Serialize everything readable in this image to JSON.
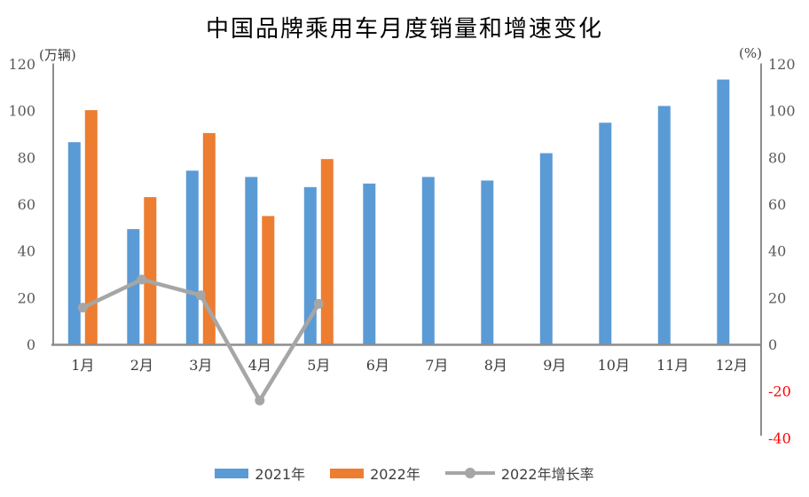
{
  "title": "中国品牌乘用车月度销量和增速变化",
  "chart_data": {
    "type": "bar+line",
    "title": "中国品牌乘用车月度销量和增速变化",
    "categories": [
      "1月",
      "2月",
      "3月",
      "4月",
      "5月",
      "6月",
      "7月",
      "8月",
      "9月",
      "10月",
      "11月",
      "12月"
    ],
    "series": [
      {
        "name": "2021年",
        "type": "bar",
        "axis": "left",
        "color": "#5B9BD5",
        "values": [
          86.7,
          49.5,
          74.5,
          71.8,
          67.5,
          69.0,
          71.8,
          70.3,
          82.0,
          95.0,
          102.2,
          113.5
        ]
      },
      {
        "name": "2022年",
        "type": "bar",
        "axis": "left",
        "color": "#ED7D31",
        "values": [
          100.4,
          63.2,
          90.6,
          55.1,
          79.5,
          null,
          null,
          null,
          null,
          null,
          null,
          null
        ]
      },
      {
        "name": "2022年增长率",
        "type": "line",
        "axis": "right",
        "color": "#A6A6A6",
        "values": [
          15.9,
          27.9,
          21.2,
          -23.8,
          17.5,
          null,
          null,
          null,
          null,
          null,
          null,
          null
        ]
      }
    ],
    "left_axis": {
      "label": "(万辆)",
      "min": 0,
      "max": 120,
      "tick_step": 20,
      "tick_color": "#595959"
    },
    "right_axis": {
      "label": "(%)",
      "min": -40,
      "max": 120,
      "tick_step": 20,
      "tick_color": "#595959",
      "negative_tick_color": "#FF0000"
    },
    "grid": false,
    "legend_position": "bottom",
    "category_label_color": "#3b3b3b",
    "axis_line_color": "#8c8c8c"
  }
}
